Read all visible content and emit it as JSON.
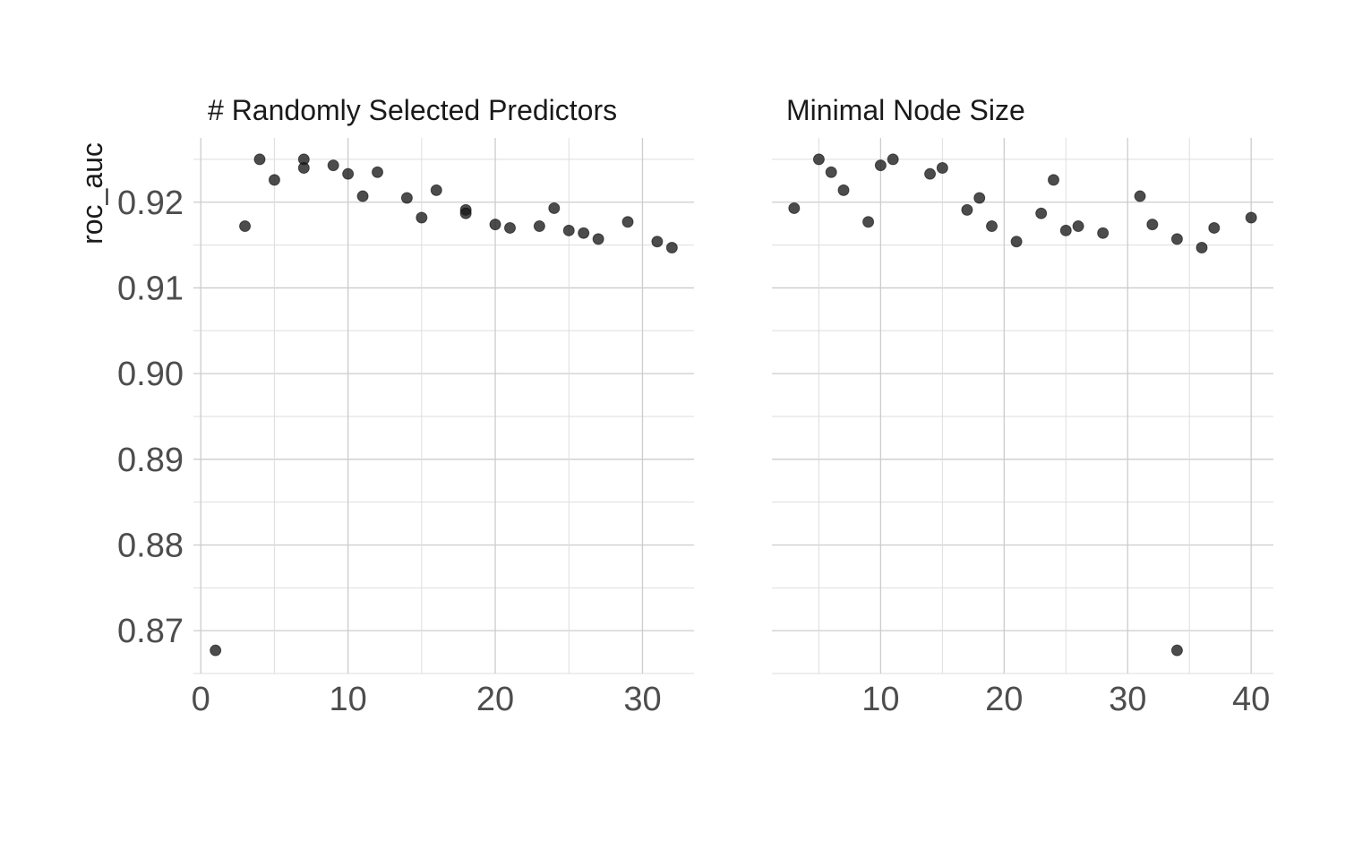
{
  "chart_data": {
    "type": "scatter",
    "ylabel": "roc_auc",
    "ylim": [
      0.865,
      0.9275
    ],
    "y_ticks": [
      "0.87",
      "0.88",
      "0.89",
      "0.90",
      "0.91",
      "0.92"
    ],
    "grid": true,
    "colors": {
      "point": "#1a1a1a",
      "grid": "#cccccc",
      "tick_text": "#4d4d4d"
    },
    "facets": [
      {
        "title": "# Randomly Selected Predictors",
        "xlim": [
          -0.5,
          33.5
        ],
        "x_ticks": [
          "0",
          "10",
          "20",
          "30"
        ],
        "points": [
          {
            "x": 1,
            "y": 0.8677
          },
          {
            "x": 3,
            "y": 0.9172
          },
          {
            "x": 4,
            "y": 0.925
          },
          {
            "x": 5,
            "y": 0.9226
          },
          {
            "x": 7,
            "y": 0.925
          },
          {
            "x": 7,
            "y": 0.924
          },
          {
            "x": 9,
            "y": 0.9243
          },
          {
            "x": 10,
            "y": 0.9233
          },
          {
            "x": 11,
            "y": 0.9207
          },
          {
            "x": 12,
            "y": 0.9235
          },
          {
            "x": 14,
            "y": 0.9205
          },
          {
            "x": 15,
            "y": 0.9182
          },
          {
            "x": 16,
            "y": 0.9214
          },
          {
            "x": 18,
            "y": 0.9191
          },
          {
            "x": 18,
            "y": 0.9187
          },
          {
            "x": 20,
            "y": 0.9174
          },
          {
            "x": 21,
            "y": 0.917
          },
          {
            "x": 23,
            "y": 0.9172
          },
          {
            "x": 24,
            "y": 0.9193
          },
          {
            "x": 25,
            "y": 0.9167
          },
          {
            "x": 26,
            "y": 0.9164
          },
          {
            "x": 27,
            "y": 0.9157
          },
          {
            "x": 29,
            "y": 0.9177
          },
          {
            "x": 31,
            "y": 0.9154
          },
          {
            "x": 32,
            "y": 0.9147
          }
        ]
      },
      {
        "title": "Minimal Node Size",
        "xlim": [
          1.2,
          41.8
        ],
        "x_ticks": [
          "10",
          "20",
          "30",
          "40"
        ],
        "points": [
          {
            "x": 3,
            "y": 0.9193
          },
          {
            "x": 5,
            "y": 0.925
          },
          {
            "x": 6,
            "y": 0.9235
          },
          {
            "x": 7,
            "y": 0.9214
          },
          {
            "x": 9,
            "y": 0.9177
          },
          {
            "x": 10,
            "y": 0.9243
          },
          {
            "x": 11,
            "y": 0.925
          },
          {
            "x": 14,
            "y": 0.9233
          },
          {
            "x": 15,
            "y": 0.924
          },
          {
            "x": 17,
            "y": 0.9191
          },
          {
            "x": 18,
            "y": 0.9205
          },
          {
            "x": 19,
            "y": 0.9172
          },
          {
            "x": 21,
            "y": 0.9154
          },
          {
            "x": 23,
            "y": 0.9187
          },
          {
            "x": 24,
            "y": 0.9226
          },
          {
            "x": 25,
            "y": 0.9167
          },
          {
            "x": 26,
            "y": 0.9172
          },
          {
            "x": 28,
            "y": 0.9164
          },
          {
            "x": 31,
            "y": 0.9207
          },
          {
            "x": 32,
            "y": 0.9174
          },
          {
            "x": 34,
            "y": 0.9157
          },
          {
            "x": 34,
            "y": 0.8677
          },
          {
            "x": 36,
            "y": 0.9147
          },
          {
            "x": 37,
            "y": 0.917
          },
          {
            "x": 40,
            "y": 0.9182
          }
        ]
      }
    ]
  }
}
